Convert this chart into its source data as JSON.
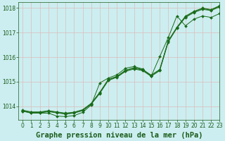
{
  "bg_color": "#cceef0",
  "grid_color": "#ddbbbb",
  "line_color": "#1a6b1a",
  "marker_color": "#1a6b1a",
  "xlabel": "Graphe pression niveau de la mer (hPa)",
  "ylim": [
    1013.45,
    1018.25
  ],
  "xlim": [
    -0.5,
    23
  ],
  "yticks": [
    1014,
    1015,
    1016,
    1017,
    1018
  ],
  "xticks": [
    0,
    1,
    2,
    3,
    4,
    5,
    6,
    7,
    8,
    9,
    10,
    11,
    12,
    13,
    14,
    15,
    16,
    17,
    18,
    19,
    20,
    21,
    22,
    23
  ],
  "series": [
    [
      1013.8,
      1013.73,
      1013.73,
      1013.78,
      1013.73,
      1013.68,
      1013.72,
      1013.82,
      1014.08,
      1014.52,
      1015.05,
      1015.18,
      1015.42,
      1015.52,
      1015.45,
      1015.22,
      1015.45,
      1016.62,
      1017.18,
      1017.62,
      1017.82,
      1017.95,
      1017.9,
      1018.05
    ],
    [
      1013.82,
      1013.75,
      1013.75,
      1013.8,
      1013.75,
      1013.7,
      1013.74,
      1013.84,
      1014.1,
      1014.55,
      1015.08,
      1015.2,
      1015.45,
      1015.55,
      1015.48,
      1015.25,
      1015.48,
      1016.65,
      1017.2,
      1017.65,
      1017.85,
      1017.98,
      1017.92,
      1018.08
    ],
    [
      1013.84,
      1013.77,
      1013.77,
      1013.82,
      1013.77,
      1013.72,
      1013.76,
      1013.86,
      1014.12,
      1014.57,
      1015.1,
      1015.22,
      1015.47,
      1015.57,
      1015.5,
      1015.27,
      1015.5,
      1016.67,
      1017.22,
      1017.67,
      1017.87,
      1018.0,
      1017.94,
      1018.1
    ],
    [
      1013.8,
      1013.72,
      1013.72,
      1013.72,
      1013.6,
      1013.58,
      1013.62,
      1013.75,
      1014.05,
      1014.95,
      1015.15,
      1015.28,
      1015.55,
      1015.62,
      1015.52,
      1015.22,
      1016.02,
      1016.8,
      1017.68,
      1017.28,
      1017.55,
      1017.68,
      1017.62,
      1017.78
    ]
  ],
  "font_color": "#1a5c1a",
  "tick_fontsize": 5.5,
  "xlabel_fontsize": 7.5
}
